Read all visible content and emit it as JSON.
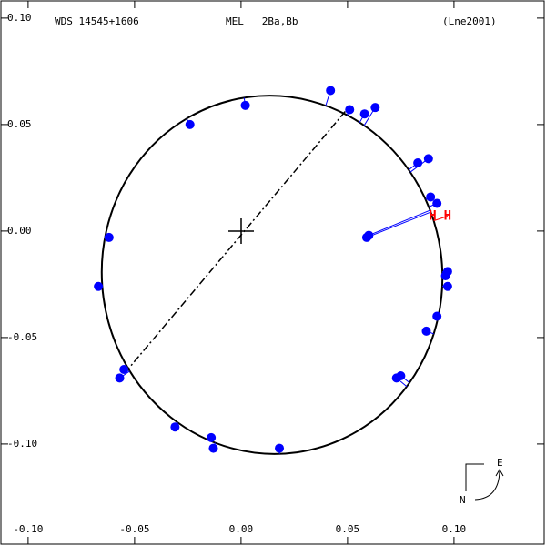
{
  "chart_data": {
    "type": "scatter",
    "title": "WDS 14545+1606",
    "subtitle": "MEL   2Ba,Bb",
    "annotation": "(Lne2001)",
    "compass": {
      "east": "E",
      "north": "N"
    },
    "xlim": [
      -0.1132,
      0.1432
    ],
    "ylim": [
      -0.1479,
      0.1085
    ],
    "xticks": [
      {
        "value": -0.1,
        "label": "-0.10"
      },
      {
        "value": -0.05,
        "label": "-0.05"
      },
      {
        "value": 0,
        "label": "0.00"
      },
      0.05,
      {
        "value": 0.1,
        "label": "0.10"
      }
    ],
    "yticks": [
      {
        "value": 0.1,
        "label": "0.10"
      },
      0.05,
      {
        "value": 0,
        "label": "0.00"
      },
      {
        "value": -0.05,
        "label": "-0.05"
      },
      {
        "value": -0.1,
        "label": "-0.10"
      }
    ],
    "series": [
      {
        "color": "#0000ff",
        "x": [
          0.042,
          0.051,
          0.058,
          0.063,
          0.002,
          -0.024,
          0.083,
          0.088,
          0.089,
          0.092,
          -0.062,
          0.059,
          0.06,
          -0.067,
          0.097,
          0.096,
          0.097,
          0.092,
          0.087,
          0.075,
          0.073,
          -0.055,
          -0.057,
          -0.031,
          -0.014,
          -0.013,
          0.018
        ],
        "values": [
          0.066,
          0.057,
          0.055,
          0.058,
          0.059,
          0.05,
          0.032,
          0.034,
          0.016,
          0.013,
          -0.003,
          -0.003,
          -0.002,
          -0.026,
          -0.019,
          -0.021,
          -0.026,
          -0.04,
          -0.047,
          -0.068,
          -0.069,
          -0.065,
          -0.069,
          -0.092,
          -0.097,
          -0.102,
          -0.102
        ]
      },
      {
        "color": "#ff0000",
        "marker": "H",
        "x": [
          0.09,
          0.097
        ],
        "values": [
          0.007,
          0.007
        ]
      }
    ]
  }
}
